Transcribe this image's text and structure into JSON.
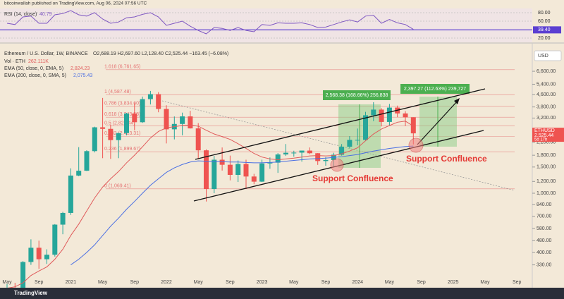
{
  "header": {
    "published": "bitcoinwallah published on TradingView.com, Aug 06, 2024 07:56 UTC"
  },
  "rsi": {
    "label": "RSI (14, close)",
    "value_label": "40.79",
    "values": [
      55,
      52,
      70,
      72,
      55,
      55,
      75,
      78,
      85,
      75,
      72,
      80,
      65,
      55,
      58,
      68,
      70,
      76,
      80,
      70,
      50,
      55,
      60,
      48,
      38,
      30,
      45,
      43,
      38,
      45,
      38,
      35,
      52,
      50,
      56,
      55,
      55,
      56,
      52,
      45,
      46,
      52,
      58,
      63,
      58,
      72,
      74,
      55,
      64,
      56,
      52,
      40.79
    ],
    "color": "#7e57c2",
    "ylim": [
      10,
      90
    ],
    "yticks": [
      {
        "value": 80,
        "label": "80.00"
      },
      {
        "value": 60,
        "label": "60.00"
      },
      {
        "value": 20,
        "label": "20.00"
      }
    ],
    "ma": {
      "value": 39.4,
      "label": "39.40",
      "color": "#5b3fd1"
    }
  },
  "legend": {
    "symbol": "Ethereum / U.S. Dollar, 1W, BINANCE",
    "ohlc": "O2,688.19 H2,697.60 L2,128.40 C2,525.44 −163.45 (−6.08%)",
    "vol": "Vol · ETH",
    "vol_value": "262.111K",
    "ema50": "EMA (50, close, 0, EMA, 5)",
    "ema50_value": "2,824.23",
    "ema200": "EMA (200, close, 0, SMA, 5)",
    "ema200_value": "2,075.43",
    "currency": "USD"
  },
  "chart_data": {
    "type": "candlestick",
    "log_scale": true,
    "ylim": [
      267,
      9890
    ],
    "yticks": [
      {
        "value": 6600,
        "label": "6,600.00"
      },
      {
        "value": 5400,
        "label": "5,400.00"
      },
      {
        "value": 4600,
        "label": "4,600.00"
      },
      {
        "value": 3800,
        "label": "3,800.00"
      },
      {
        "value": 3200,
        "label": "3,200.00"
      },
      {
        "value": 2200,
        "label": "2,200.00"
      },
      {
        "value": 1800,
        "label": "1,800.00"
      },
      {
        "value": 1500,
        "label": "1,500.00"
      },
      {
        "value": 1200,
        "label": "1,200.00"
      },
      {
        "value": 1000,
        "label": "1,000.00"
      },
      {
        "value": 840,
        "label": "840.00"
      },
      {
        "value": 700,
        "label": "700.00"
      },
      {
        "value": 580,
        "label": "580.00"
      },
      {
        "value": 480,
        "label": "480.00"
      },
      {
        "value": 400,
        "label": "400.00"
      },
      {
        "value": 330,
        "label": "330.00"
      }
    ],
    "xticks": [
      "May",
      "Sep",
      "2021",
      "May",
      "Sep",
      "2022",
      "May",
      "Sep",
      "2023",
      "May",
      "Sep",
      "2024",
      "May",
      "Sep",
      "2025",
      "May",
      "Sep"
    ],
    "up_color": "#26a69a",
    "down_color": "#ef5350",
    "candles": {
      "open": [
        205,
        230,
        225,
        345,
        430,
        360,
        386,
        615,
        737,
        1314,
        1416,
        1918,
        2773,
        2707,
        2275,
        2536,
        3433,
        3000,
        4288,
        4631,
        3683,
        2688,
        2920,
        3283,
        2727,
        1942,
        1067,
        1679,
        1553,
        1328,
        1572,
        1295,
        1196,
        1585,
        1605,
        1822,
        1870,
        1874,
        1934,
        1857,
        1645,
        1671,
        1814,
        2052,
        2282,
        2283,
        3340,
        3647,
        3013,
        3762,
        3437,
        3232
      ],
      "high": [
        245,
        250,
        350,
        490,
        480,
        420,
        620,
        750,
        1470,
        2040,
        1945,
        2800,
        4370,
        2890,
        2550,
        3470,
        4030,
        4460,
        4870,
        4780,
        3900,
        3280,
        3480,
        3580,
        2960,
        1970,
        1780,
        2030,
        1790,
        1660,
        1680,
        1350,
        1680,
        1740,
        1860,
        2140,
        1930,
        1930,
        2030,
        1860,
        1750,
        1870,
        2140,
        2420,
        2720,
        3520,
        4090,
        3730,
        3980,
        3880,
        3560,
        3240
      ],
      "low": [
        185,
        215,
        220,
        330,
        310,
        335,
        375,
        530,
        715,
        1300,
        1410,
        1880,
        1720,
        1700,
        1720,
        2450,
        2650,
        2970,
        3950,
        3500,
        2160,
        2300,
        2450,
        2720,
        1700,
        880,
        1000,
        1420,
        1220,
        1190,
        1070,
        1150,
        1190,
        1460,
        1370,
        1780,
        1760,
        1630,
        1830,
        1550,
        1530,
        1520,
        1790,
        2000,
        2100,
        2260,
        3050,
        2810,
        2860,
        3240,
        2830,
        2128.4
      ],
      "close": [
        230,
        225,
        345,
        430,
        360,
        386,
        615,
        737,
        1314,
        1416,
        1918,
        2773,
        2707,
        2275,
        2536,
        3433,
        3000,
        4288,
        4631,
        3683,
        2688,
        2920,
        3283,
        2727,
        1942,
        1067,
        1679,
        1553,
        1328,
        1572,
        1295,
        1196,
        1585,
        1605,
        1822,
        1870,
        1874,
        1934,
        1857,
        1645,
        1671,
        1814,
        2052,
        2282,
        2283,
        3340,
        3647,
        3013,
        3762,
        3437,
        3232,
        2525.44
      ]
    },
    "series": [
      {
        "name": "EMA (50)",
        "color": "#e05a5a",
        "values": [
          230,
          235,
          250,
          280,
          300,
          320,
          360,
          420,
          520,
          620,
          760,
          930,
          1100,
          1250,
          1400,
          1600,
          1800,
          2050,
          2350,
          2600,
          2750,
          2800,
          2850,
          2870,
          2820,
          2650,
          2500,
          2400,
          2300,
          2150,
          2000,
          1850,
          1750,
          1700,
          1680,
          1700,
          1720,
          1750,
          1780,
          1790,
          1780,
          1790,
          1840,
          1920,
          2020,
          2250,
          2500,
          2700,
          2850,
          3000,
          3050,
          2824.23
        ]
      },
      {
        "name": "EMA (200)",
        "color": "#4a6fe3",
        "values": [
          null,
          null,
          null,
          null,
          null,
          null,
          null,
          null,
          330,
          360,
          400,
          450,
          520,
          600,
          680,
          780,
          880,
          1000,
          1130,
          1250,
          1380,
          1480,
          1560,
          1620,
          1650,
          1640,
          1630,
          1630,
          1620,
          1620,
          1610,
          1600,
          1600,
          1610,
          1620,
          1640,
          1660,
          1680,
          1700,
          1710,
          1720,
          1740,
          1760,
          1790,
          1820,
          1870,
          1920,
          1960,
          2000,
          2030,
          2060,
          2075.43
        ]
      }
    ],
    "fib_color": "#e57373",
    "fib": [
      {
        "value": 6761.65,
        "label": "1.618 (6,761.65)"
      },
      {
        "value": 4587.48,
        "label": "1 (4,587.48)"
      },
      {
        "value": 3834.6,
        "label": "0.786 (3,834.60)"
      },
      {
        "value": 3243.58,
        "label": "0.618 (3,243.58)"
      },
      {
        "value": 2828.44,
        "label": "0.5 (2,828.44)"
      },
      {
        "value": 2413.31,
        "label": "0.382 (2,413.31)"
      },
      {
        "value": 1899.67,
        "label": "0.236 (1,899.67)"
      },
      {
        "value": 1069.41,
        "label": "0 (1,069.41)"
      }
    ],
    "measures": [
      "2,568.38 (168.66%) 256,838",
      "2,397.27 (112.63%) 239,727"
    ],
    "annotations": [
      "Support Confluence",
      "Support Confluence"
    ],
    "last_price": {
      "symbol": "ETHUSD",
      "value": 2525.44,
      "label": "2,525.44",
      "countdown": "5d 17h"
    }
  },
  "footer": {
    "brand": "TradingView"
  }
}
